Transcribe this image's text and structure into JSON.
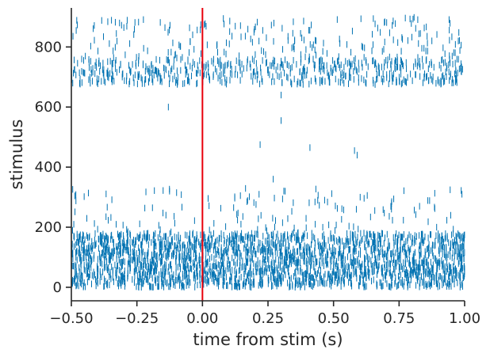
{
  "chart_data": {
    "type": "raster",
    "xlabel": "time from stim (s)",
    "ylabel": "stimulus",
    "xlim": [
      -0.5,
      1.0
    ],
    "ylim": [
      -45,
      930
    ],
    "x_ticks": [
      -0.5,
      -0.25,
      0.0,
      0.25,
      0.5,
      0.75,
      1.0
    ],
    "x_tick_labels": [
      "−0.50",
      "−0.25",
      "0.00",
      "0.25",
      "0.50",
      "0.75",
      "1.00"
    ],
    "y_ticks": [
      0,
      200,
      400,
      600,
      800
    ],
    "y_tick_labels": [
      "0",
      "200",
      "400",
      "600",
      "800"
    ],
    "event_marker": {
      "x": 0.0,
      "color": "#e8000b"
    },
    "spike_color": "#0072b2",
    "spike_length": 22,
    "spike_groups": [
      {
        "description": "dense low-stimulus band",
        "t_range": [
          -0.5,
          1.0
        ],
        "stim_range": [
          0,
          180
        ],
        "count": 2600
      },
      {
        "description": "sparse spikes above low band",
        "t_range": [
          -0.5,
          1.0
        ],
        "stim_range": [
          180,
          330
        ],
        "count": 140
      },
      {
        "description": "dense high-stimulus band",
        "t_range": [
          -0.5,
          1.0
        ],
        "stim_range": [
          675,
          760
        ],
        "count": 620
      },
      {
        "description": "sparse spikes above high band",
        "t_range": [
          -0.5,
          1.0
        ],
        "stim_range": [
          760,
          900
        ],
        "count": 210
      }
    ],
    "isolated_spikes": [
      {
        "t": -0.13,
        "stim": 600
      },
      {
        "t": 0.22,
        "stim": 475
      },
      {
        "t": 0.3,
        "stim": 555
      },
      {
        "t": 0.27,
        "stim": 360
      },
      {
        "t": 0.41,
        "stim": 465
      },
      {
        "t": 0.58,
        "stim": 455
      },
      {
        "t": 0.59,
        "stim": 440
      },
      {
        "t": 0.3,
        "stim": 640
      }
    ],
    "grid": false,
    "legend": "none"
  }
}
